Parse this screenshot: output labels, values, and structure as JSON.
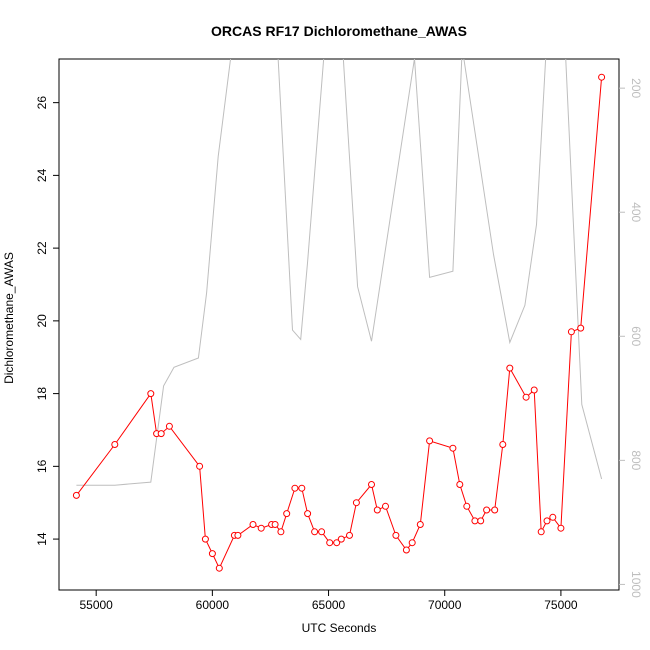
{
  "chart_data": {
    "type": "line",
    "title": "ORCAS RF17 Dichloromethane_AWAS",
    "xlabel": "UTC Seconds",
    "ylabel": "Dichloromethane_AWAS",
    "xlim": [
      53400,
      77500
    ],
    "ylim": [
      12.6,
      27.2
    ],
    "x_ticks": [
      55000,
      60000,
      65000,
      70000,
      75000
    ],
    "y_ticks": [
      14,
      16,
      18,
      20,
      22,
      24,
      26
    ],
    "y2_ticks": [
      200,
      400,
      600,
      800,
      1000
    ],
    "y2lim_top_to_bottom": [
      153,
      1009
    ],
    "grid": false,
    "legend": "none",
    "colors": {
      "primary": "#ff0000",
      "secondary": "#bebebe",
      "axis": "#000000",
      "secondary_axis": "#bebebe"
    },
    "series": [
      {
        "axis": "left",
        "marker": "open-circle",
        "x": [
          54150,
          55800,
          57350,
          57600,
          57800,
          58150,
          59450,
          59700,
          60000,
          60300,
          60950,
          61100,
          61750,
          62100,
          62550,
          62700,
          62950,
          63200,
          63550,
          63850,
          64100,
          64400,
          64700,
          65050,
          65350,
          65550,
          65900,
          66200,
          66850,
          67100,
          67450,
          67900,
          68350,
          68600,
          68950,
          69350,
          70350,
          70650,
          70950,
          71300,
          71550,
          71800,
          72150,
          72500,
          72800,
          73500,
          73850,
          74150,
          74400,
          74650,
          75000,
          75450,
          75850,
          76750
        ],
        "y": [
          15.2,
          16.6,
          18.0,
          16.9,
          16.9,
          17.1,
          16.0,
          14.0,
          13.6,
          13.2,
          14.1,
          14.1,
          14.4,
          14.3,
          14.4,
          14.4,
          14.2,
          14.7,
          15.4,
          15.4,
          14.7,
          14.2,
          14.2,
          13.9,
          13.9,
          14.0,
          14.1,
          15.0,
          15.5,
          14.8,
          14.9,
          14.1,
          13.7,
          13.9,
          14.4,
          16.7,
          16.5,
          15.5,
          14.9,
          14.5,
          14.5,
          14.8,
          14.8,
          16.6,
          18.7,
          17.9,
          18.1,
          14.2,
          14.5,
          14.6,
          14.3,
          19.7,
          19.8,
          26.7
        ]
      },
      {
        "axis": "right",
        "x": [
          54150,
          55800,
          57350,
          57900,
          58350,
          59400,
          59750,
          60250,
          60850,
          61750,
          62050,
          62800,
          63450,
          63800,
          64100,
          64800,
          65600,
          66250,
          66850,
          68700,
          69350,
          70350,
          70750,
          72100,
          72800,
          73450,
          73950,
          74350,
          75200,
          75900,
          76750
        ],
        "y": [
          840,
          840,
          835,
          680,
          650,
          635,
          530,
          310,
          133,
          133,
          127,
          130,
          590,
          605,
          480,
          148,
          131,
          520,
          608,
          152,
          505,
          495,
          135,
          468,
          610,
          550,
          420,
          148,
          148,
          710,
          830
        ]
      }
    ]
  }
}
